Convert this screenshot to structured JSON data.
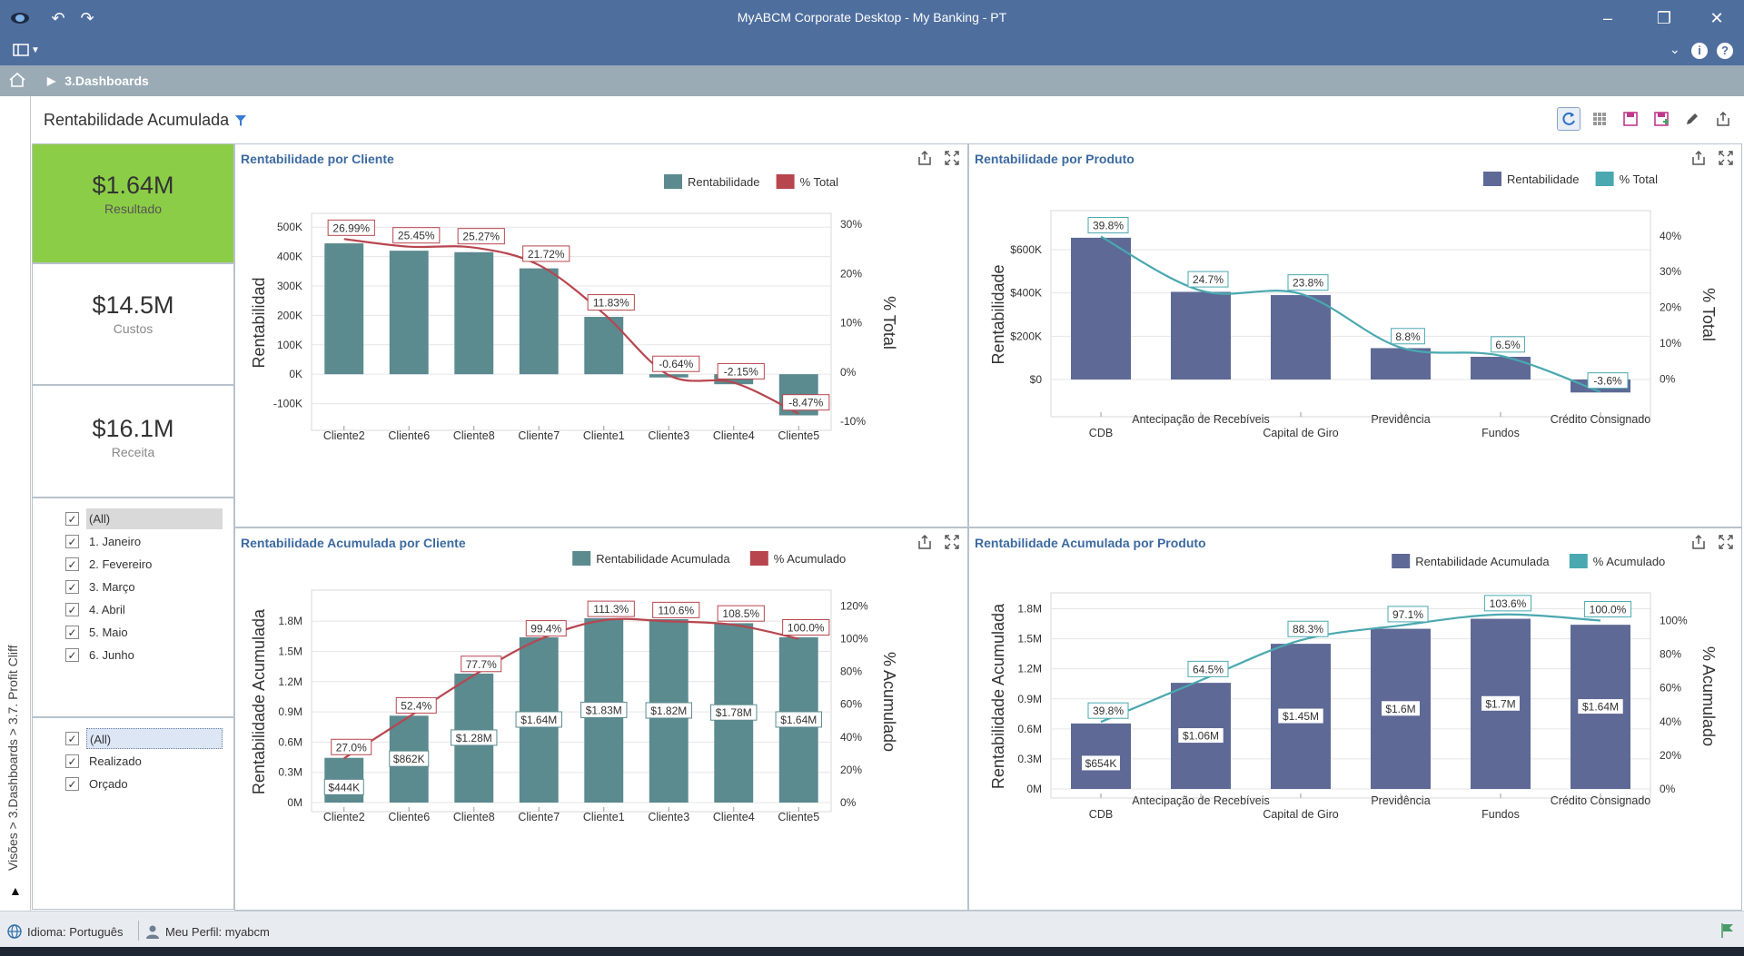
{
  "window": {
    "title": "MyABCM Corporate Desktop - My Banking - PT",
    "minimize_icon": "minimize-icon",
    "maximize_icon": "restore-icon",
    "close_icon": "close-icon"
  },
  "breadcrumb": {
    "item": "3.Dashboards"
  },
  "side_strip": {
    "text": "Visões > 3.Dashboards > 3.7. Profit Cliff"
  },
  "dashboard": {
    "title": "Rentabilidade Acumulada"
  },
  "kpis": [
    {
      "value": "$1.64M",
      "label": "Resultado",
      "color": "#8ccd47"
    },
    {
      "value": "$14.5M",
      "label": "Custos",
      "color": "#ffffff"
    },
    {
      "value": "$16.1M",
      "label": "Receita",
      "color": "#ffffff"
    }
  ],
  "filter_months": {
    "items": [
      "(All)",
      "1. Janeiro",
      "2. Fevereiro",
      "3. Março",
      "4. Abril",
      "5. Maio",
      "6. Junho"
    ]
  },
  "filter_scenario": {
    "items": [
      "(All)",
      "Realizado",
      "Orçado"
    ]
  },
  "status": {
    "language": "Idioma: Português",
    "profile": "Meu Perfil: myabcm"
  },
  "colors": {
    "teal_bar": "#5b8a8f",
    "red_line": "#b7464f",
    "navy_bar": "#5e6995",
    "cyan_line": "#4aa8b0",
    "kpi_green": "#8ccd47",
    "title_blue": "#3c6aa1"
  },
  "chart_data": [
    {
      "type": "bar",
      "title": "Rentabilidade por Cliente",
      "categories": [
        "Cliente2",
        "Cliente6",
        "Cliente8",
        "Cliente7",
        "Cliente1",
        "Cliente3",
        "Cliente4",
        "Cliente5"
      ],
      "series": [
        {
          "name": "Rentabilidade",
          "values": [
            445000,
            420000,
            415000,
            360000,
            195000,
            -11000,
            -34000,
            -140000
          ]
        },
        {
          "name": "% Total",
          "values": [
            26.99,
            25.45,
            25.27,
            21.72,
            11.83,
            -0.64,
            -2.15,
            -8.47
          ],
          "labels": [
            "26.99%",
            "25.45%",
            "25.27%",
            "21.72%",
            "11.83%",
            "-0.64%",
            "-2.15%",
            "-8.47%"
          ]
        }
      ],
      "ylabel": "Rentabilidad",
      "y2label": "% Total",
      "ylim": [
        -160000,
        510000
      ],
      "y2lim": [
        -10,
        30
      ],
      "yticks": [
        "500K",
        "400K",
        "300K",
        "200K",
        "100K",
        "0K",
        "-100K"
      ],
      "y2ticks": [
        "30%",
        "20%",
        "10%",
        "0%",
        "-10%"
      ],
      "legend": "top-right"
    },
    {
      "type": "bar",
      "title": "Rentabilidade por Produto",
      "categories": [
        "CDB",
        "Antecipação de Recebíveis",
        "Capital de Giro",
        "Previdência",
        "Fundos",
        "Crédito Consignado"
      ],
      "series": [
        {
          "name": "Rentabilidade",
          "values": [
            655000,
            405000,
            390000,
            145000,
            105000,
            -60000
          ]
        },
        {
          "name": "% Total",
          "values": [
            39.8,
            24.7,
            23.8,
            8.8,
            6.5,
            -3.6
          ],
          "labels": [
            "39.8%",
            "24.7%",
            "23.8%",
            "8.8%",
            "6.5%",
            "-3.6%"
          ]
        }
      ],
      "ylabel": "Rentabilidade",
      "y2label": "% Total",
      "ylim": [
        -130000,
        730000
      ],
      "y2lim": [
        -8,
        44
      ],
      "yticks": [
        "$600K",
        "$400K",
        "$200K",
        "$0"
      ],
      "y2ticks": [
        "40%",
        "30%",
        "20%",
        "10%",
        "0%"
      ],
      "legend": "top-right"
    },
    {
      "type": "bar",
      "title": "Rentabilidade Acumulada por Cliente",
      "categories": [
        "Cliente2",
        "Cliente6",
        "Cliente8",
        "Cliente7",
        "Cliente1",
        "Cliente3",
        "Cliente4",
        "Cliente5"
      ],
      "series": [
        {
          "name": "Rentabilidade Acumulada",
          "values": [
            0.444,
            0.862,
            1.28,
            1.64,
            1.83,
            1.82,
            1.78,
            1.64
          ],
          "labels": [
            "$444K",
            "$862K",
            "$1.28M",
            "$1.64M",
            "$1.83M",
            "$1.82M",
            "$1.78M",
            "$1.64M"
          ]
        },
        {
          "name": "% Acumulado",
          "values": [
            27.0,
            52.4,
            77.7,
            99.4,
            111.3,
            110.6,
            108.5,
            100.0
          ],
          "labels": [
            "27.0%",
            "52.4%",
            "77.7%",
            "99.4%",
            "111.3%",
            "110.6%",
            "108.5%",
            "100.0%"
          ]
        }
      ],
      "ylabel": "Rentabilidade Acumulada",
      "y2label": "% Acumulado",
      "ylim": [
        0,
        2.0
      ],
      "y2lim": [
        0,
        123
      ],
      "yticks": [
        "1.8M",
        "1.5M",
        "1.2M",
        "0.9M",
        "0.6M",
        "0.3M",
        "0M"
      ],
      "y2ticks": [
        "120%",
        "100%",
        "80%",
        "60%",
        "40%",
        "20%",
        "0%"
      ],
      "legend": "top-right"
    },
    {
      "type": "bar",
      "title": "Rentabilidade Acumulada por Produto",
      "categories": [
        "CDB",
        "Antecipação de Recebíveis",
        "Capital de Giro",
        "Previdência",
        "Fundos",
        "Crédito Consignado"
      ],
      "series": [
        {
          "name": "Rentabilidade Acumulada",
          "values": [
            0.654,
            1.06,
            1.45,
            1.6,
            1.7,
            1.64
          ],
          "labels": [
            "$654K",
            "$1.06M",
            "$1.45M",
            "$1.6M",
            "$1.7M",
            "$1.64M"
          ]
        },
        {
          "name": "% Acumulado",
          "values": [
            39.8,
            64.5,
            88.3,
            97.1,
            103.6,
            100.0
          ],
          "labels": [
            "39.8%",
            "64.5%",
            "88.3%",
            "97.1%",
            "103.6%",
            "100.0%"
          ]
        }
      ],
      "ylabel": "Rentabilidade Acumulada",
      "y2label": "% Acumulado",
      "ylim": [
        0,
        1.85
      ],
      "y2lim": [
        0,
        110
      ],
      "yticks": [
        "1.8M",
        "1.5M",
        "1.2M",
        "0.9M",
        "0.6M",
        "0.3M",
        "0M"
      ],
      "y2ticks": [
        "100%",
        "80%",
        "60%",
        "40%",
        "20%",
        "0%"
      ],
      "legend": "top-right"
    }
  ]
}
